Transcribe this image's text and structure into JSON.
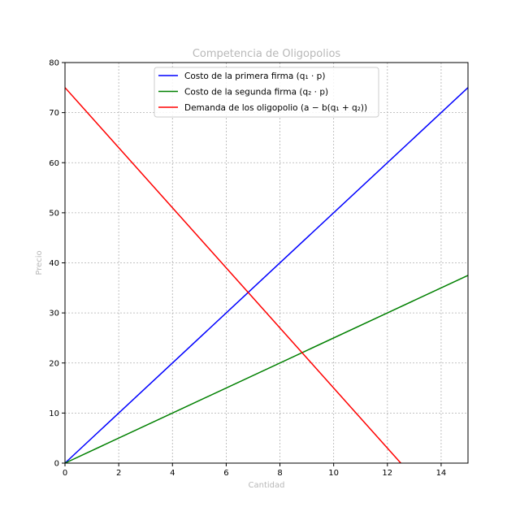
{
  "chart_data": {
    "type": "line",
    "title": "Competencia de Oligopolios",
    "xlabel": "Cantidad",
    "ylabel": "Precio",
    "xlim": [
      0,
      15
    ],
    "ylim": [
      0,
      80
    ],
    "x_ticks": [
      0,
      2,
      4,
      6,
      8,
      10,
      12,
      14
    ],
    "y_ticks": [
      0,
      10,
      20,
      30,
      40,
      50,
      60,
      70,
      80
    ],
    "grid": true,
    "legend_position": "top-center",
    "series": [
      {
        "name": "Costo de la primera firma (q₁ · p)",
        "color": "#0000ff",
        "x": [
          0,
          15
        ],
        "y": [
          0,
          75
        ]
      },
      {
        "name": "Costo de la segunda firma (q₂ · p)",
        "color": "#008000",
        "x": [
          0,
          15
        ],
        "y": [
          0,
          37.5
        ]
      },
      {
        "name": "Demanda de los oligopolio (a − b(q₁ + q₂))",
        "color": "#ff0000",
        "x": [
          0,
          12.5
        ],
        "y": [
          75,
          0
        ]
      }
    ]
  }
}
